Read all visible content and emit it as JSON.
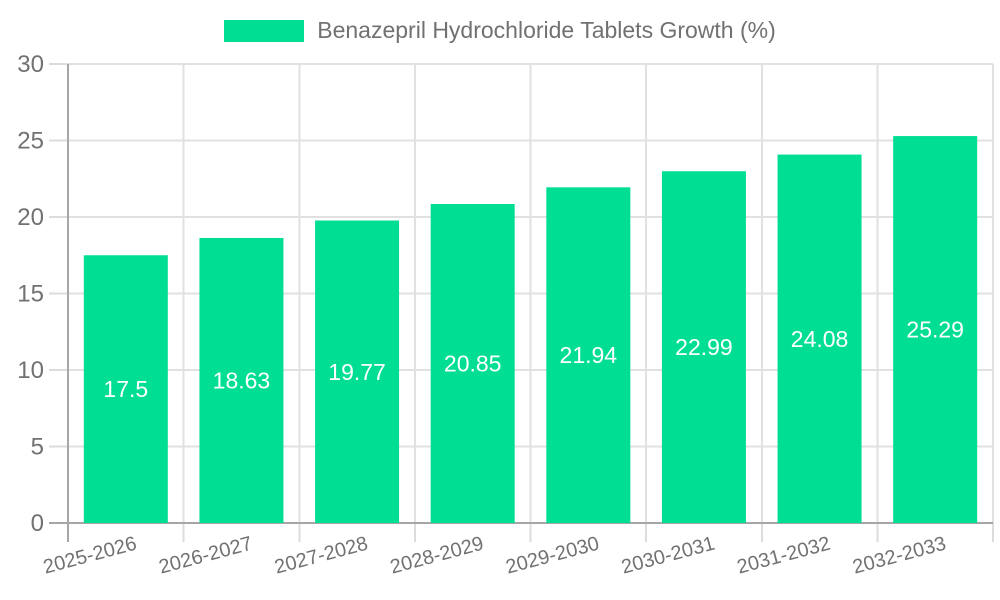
{
  "chart_data": {
    "type": "bar",
    "title": "Benazepril Hydrochloride Tablets Growth (%)",
    "legend_entries": [
      "Benazepril Hydrochloride Tablets Growth (%)"
    ],
    "legend_position": "top-center",
    "categories": [
      "2025-2026",
      "2026-2027",
      "2027-2028",
      "2028-2029",
      "2029-2030",
      "2030-2031",
      "2031-2032",
      "2032-2033"
    ],
    "series": [
      {
        "name": "Benazepril Hydrochloride Tablets Growth (%)",
        "values": [
          17.5,
          18.63,
          19.77,
          20.85,
          21.94,
          22.99,
          24.08,
          25.29
        ]
      }
    ],
    "value_labels": [
      "17.5",
      "18.63",
      "19.77",
      "20.85",
      "21.94",
      "22.99",
      "24.08",
      "25.29"
    ],
    "xlabel": "",
    "ylabel": "",
    "ylim": [
      0,
      30
    ],
    "y_ticks": [
      0,
      5,
      10,
      15,
      20,
      25,
      30
    ],
    "grid": true,
    "x_label_rotation_deg": -15
  },
  "colors": {
    "bar": "#00DE94",
    "axis_line": "#A6A6A6",
    "grid_line": "#E1E1E1",
    "tick_line": "#DCDCDC",
    "tick_text": "#717171",
    "title_text": "#717171",
    "value_label_text": "#FFFFFF",
    "background": "#FFFFFF"
  }
}
